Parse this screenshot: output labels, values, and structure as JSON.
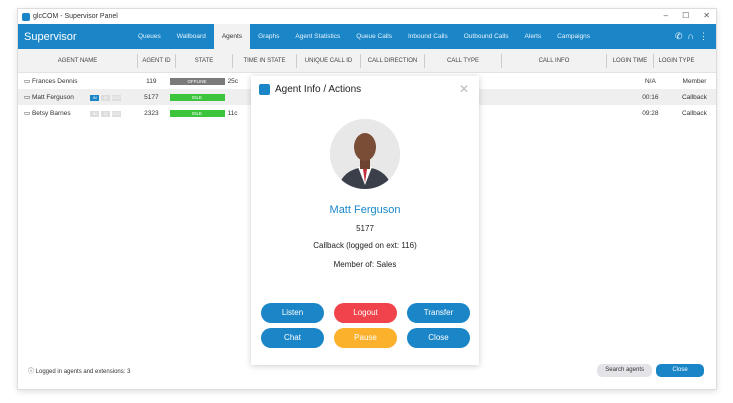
{
  "window": {
    "title": "glcCOM - Supervisor Panel",
    "controls": [
      "–",
      "☐",
      "✕"
    ]
  },
  "header": {
    "brand": "Supervisor",
    "tabs": [
      "Queues",
      "Wallboard",
      "Agents",
      "Graphs",
      "Agent Statistics",
      "Queue Calls",
      "Inbound Calls",
      "Outbound Calls",
      "Alerts",
      "Campaigns"
    ],
    "active_tab": "Agents"
  },
  "table": {
    "columns": [
      "AGENT NAME",
      "AGENT ID",
      "STATE",
      "TIME IN STATE",
      "UNIQUE CALL ID",
      "CALL DIRECTION",
      "CALL TYPE",
      "CALL INFO",
      "LOGIN TIME",
      "LOGIN TYPE"
    ],
    "rows": [
      {
        "name": "Frances Dennis",
        "id": "119",
        "state": "OFFLINE",
        "time": "25c",
        "login_time": "N/A",
        "login_type": "Member",
        "badges": []
      },
      {
        "name": "Matt Ferguson",
        "id": "5177",
        "state": "IDLE",
        "time": "",
        "login_time": "00:16",
        "login_type": "Callback",
        "badges": [
          "IN",
          "Q",
          "OUT"
        ]
      },
      {
        "name": "Betsy Barnes",
        "id": "2323",
        "state": "IDLE",
        "time": "11c",
        "login_time": "09:28",
        "login_type": "Callback",
        "badges": [
          "IN",
          "Q",
          "OUT"
        ]
      }
    ]
  },
  "colors": {
    "primary": "#1a86c8",
    "offline": "#7a7a7a",
    "idle": "#3dc43d",
    "logout": "#f0434b",
    "pause": "#fbb12b"
  },
  "footer": {
    "status": "Logged in agents and extensions: 3",
    "search": "Search agents",
    "close": "Close"
  },
  "modal": {
    "title": "Agent Info / Actions",
    "name": "Matt Ferguson",
    "id": "5177",
    "login": "Callback (logged on ext: 116)",
    "member": "Member of: Sales",
    "buttons": {
      "listen": "Listen",
      "logout": "Logout",
      "transfer": "Transfer",
      "chat": "Chat",
      "pause": "Pause",
      "close": "Close"
    }
  }
}
